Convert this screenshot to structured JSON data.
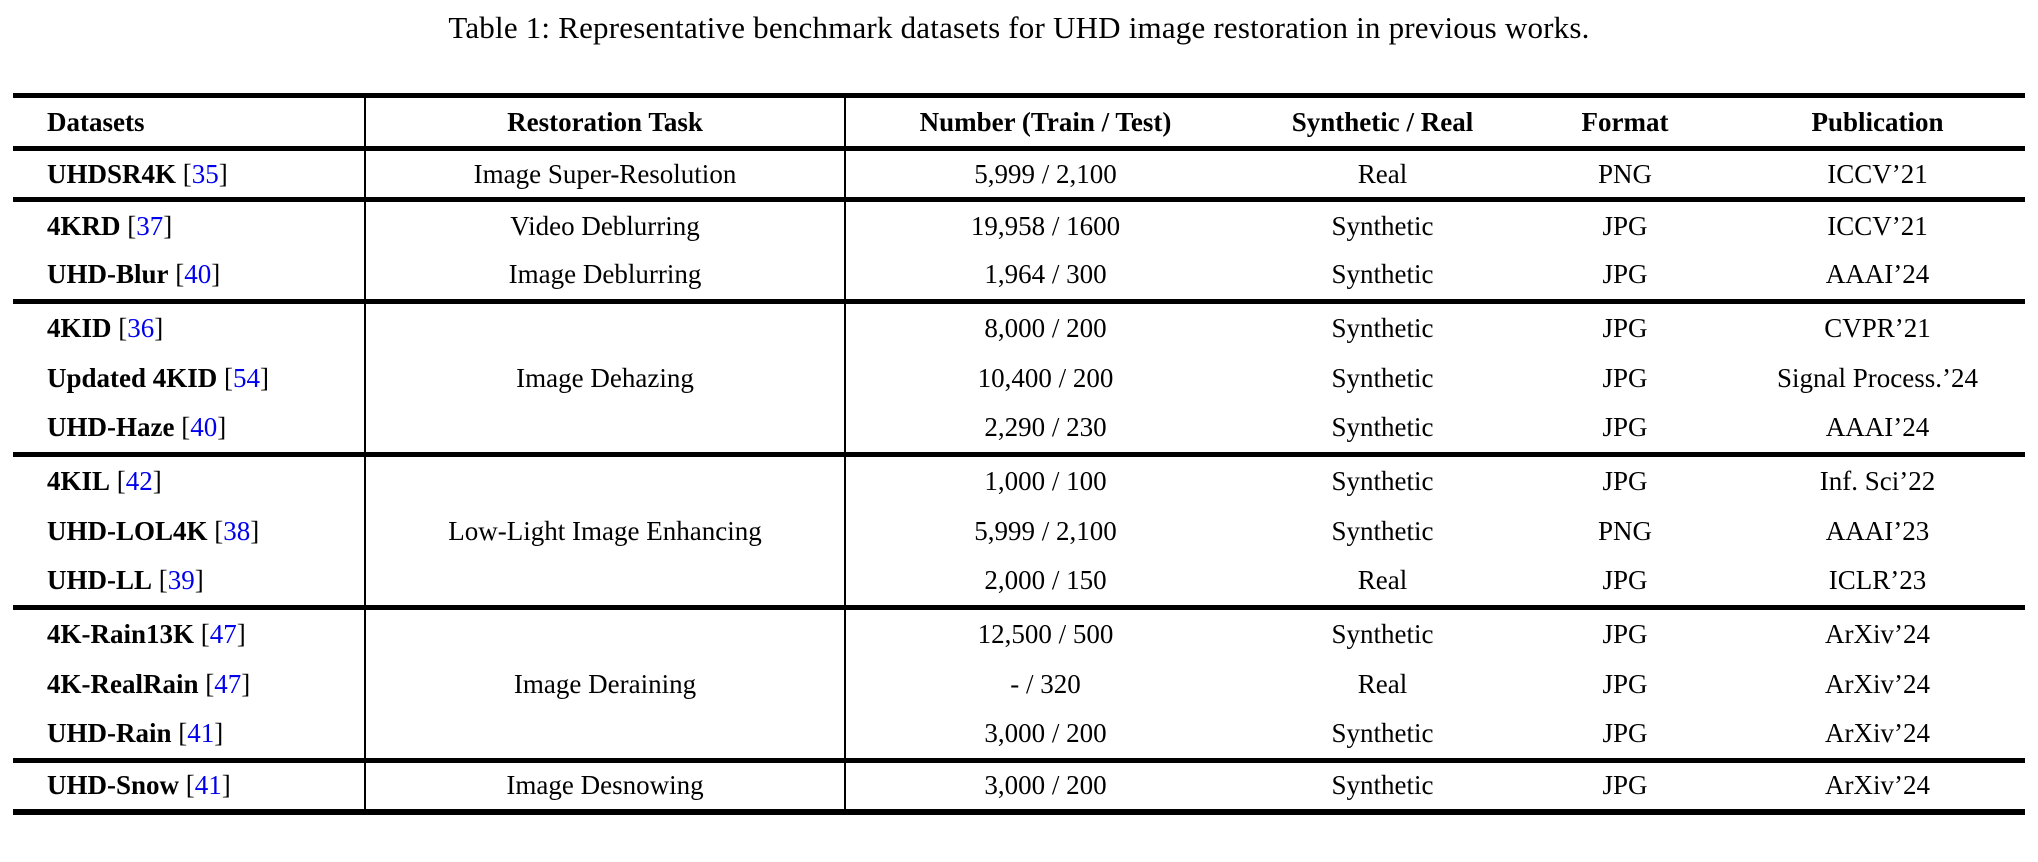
{
  "title": "Table 1: Representative benchmark datasets for UHD image restoration in previous works.",
  "colors": {
    "citation_blue": "#0000EE",
    "text": "#000000",
    "background": "#FFFFFF",
    "rule": "#000000"
  },
  "punct": {
    "open": "[",
    "close": "]"
  },
  "table": {
    "headers": [
      "Datasets",
      "Restoration Task",
      "Number (Train / Test)",
      "Synthetic / Real",
      "Format",
      "Publication"
    ],
    "groups": [
      {
        "rows": [
          {
            "dataset": "UHDSR4K",
            "ref": "35",
            "task": "Image Super-Resolution",
            "number": "5,999 / 2,100",
            "type": "Real",
            "format": "PNG",
            "publication": "ICCV’21"
          }
        ]
      },
      {
        "rows": [
          {
            "dataset": "4KRD",
            "ref": "37",
            "task": "Video Deblurring",
            "number": "19,958 / 1600",
            "type": "Synthetic",
            "format": "JPG",
            "publication": "ICCV’21"
          },
          {
            "dataset": "UHD-Blur",
            "ref": "40",
            "task": "Image Deblurring",
            "number": "1,964 / 300",
            "type": "Synthetic",
            "format": "JPG",
            "publication": "AAAI’24"
          }
        ]
      },
      {
        "task": "Image Dehazing",
        "rows": [
          {
            "dataset": "4KID",
            "ref": "36",
            "number": "8,000 / 200",
            "type": "Synthetic",
            "format": "JPG",
            "publication": "CVPR’21"
          },
          {
            "dataset": "Updated 4KID",
            "ref": "54",
            "number": "10,400 / 200",
            "type": "Synthetic",
            "format": "JPG",
            "publication": "Signal Process.’24"
          },
          {
            "dataset": "UHD-Haze",
            "ref": "40",
            "number": "2,290 / 230",
            "type": "Synthetic",
            "format": "JPG",
            "publication": "AAAI’24"
          }
        ]
      },
      {
        "task": "Low-Light Image Enhancing",
        "rows": [
          {
            "dataset": "4KIL",
            "ref": "42",
            "number": "1,000 / 100",
            "type": "Synthetic",
            "format": "JPG",
            "publication": "Inf. Sci’22"
          },
          {
            "dataset": "UHD-LOL4K",
            "ref": "38",
            "number": "5,999 / 2,100",
            "type": "Synthetic",
            "format": "PNG",
            "publication": "AAAI’23"
          },
          {
            "dataset": "UHD-LL",
            "ref": "39",
            "number": "2,000 / 150",
            "type": "Real",
            "format": "JPG",
            "publication": "ICLR’23"
          }
        ]
      },
      {
        "task": "Image Deraining",
        "rows": [
          {
            "dataset": "4K-Rain13K",
            "ref": "47",
            "number": "12,500 / 500",
            "type": "Synthetic",
            "format": "JPG",
            "publication": "ArXiv’24"
          },
          {
            "dataset": "4K-RealRain",
            "ref": "47",
            "number": "- / 320",
            "type": "Real",
            "format": "JPG",
            "publication": "ArXiv’24"
          },
          {
            "dataset": "UHD-Rain",
            "ref": "41",
            "number": "3,000 / 200",
            "type": "Synthetic",
            "format": "JPG",
            "publication": "ArXiv’24"
          }
        ]
      },
      {
        "rows": [
          {
            "dataset": "UHD-Snow",
            "ref": "41",
            "task": "Image Desnowing",
            "number": "3,000 / 200",
            "type": "Synthetic",
            "format": "JPG",
            "publication": "ArXiv’24"
          }
        ]
      }
    ]
  }
}
